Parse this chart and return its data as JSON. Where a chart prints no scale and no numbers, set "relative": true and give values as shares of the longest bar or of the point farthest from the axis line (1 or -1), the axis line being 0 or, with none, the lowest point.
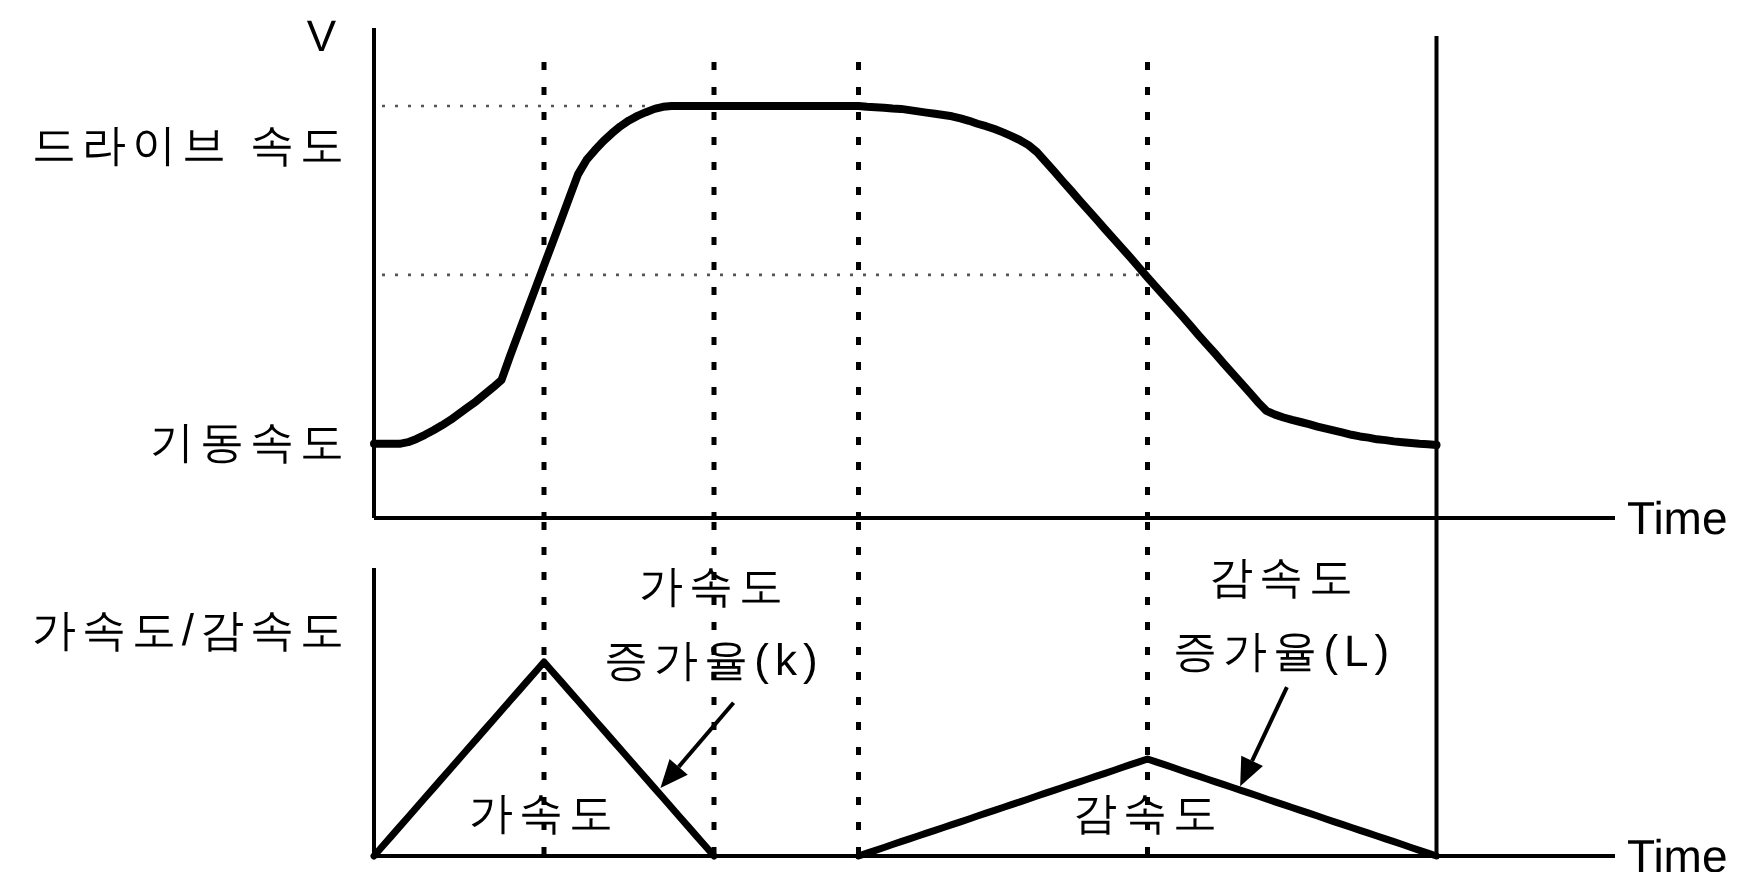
{
  "chart_data": [
    {
      "type": "line",
      "ylabel": "V",
      "xlabel": "Time",
      "relative": true,
      "categories": [
        null,
        null,
        null,
        null,
        null,
        null,
        null,
        null,
        null,
        null,
        null,
        null,
        null,
        null,
        null,
        null,
        null,
        null,
        null,
        null,
        null,
        null,
        null,
        null,
        null,
        null,
        null,
        null,
        null,
        null,
        null,
        null,
        null,
        null,
        null,
        null,
        null,
        null,
        null,
        null,
        null,
        null,
        null,
        null,
        null,
        null,
        null,
        null,
        null,
        null,
        null,
        null,
        null,
        null,
        null,
        null,
        null,
        null,
        null,
        null,
        null,
        null,
        null,
        null,
        null,
        null,
        null,
        null,
        null,
        null,
        null,
        null,
        null,
        null,
        null,
        null,
        null,
        null,
        null,
        null,
        null,
        null,
        null,
        null,
        null,
        null,
        null,
        null,
        null,
        null,
        null,
        null,
        null,
        null,
        null,
        null,
        null,
        null,
        null,
        null,
        null,
        null,
        null,
        null,
        null,
        null,
        null,
        null,
        null,
        null,
        null,
        null,
        null,
        null,
        null,
        null,
        null,
        null,
        null,
        null,
        null,
        null,
        null,
        null,
        null,
        null,
        null,
        null,
        null,
        null,
        null,
        null,
        null,
        null,
        null,
        null,
        null,
        null,
        null,
        null,
        null,
        null,
        null,
        null,
        null,
        null,
        null
      ],
      "color": "#000000",
      "values": [
        0.18,
        0.18,
        0.18,
        0.18,
        0.184,
        0.192,
        0.202,
        0.213,
        0.225,
        0.238,
        0.253,
        0.268,
        0.283,
        0.3,
        0.317,
        0.335,
        0.393,
        0.448,
        0.503,
        0.558,
        0.613,
        0.668,
        0.723,
        0.779,
        0.834,
        0.869,
        0.893,
        0.915,
        0.934,
        0.951,
        0.965,
        0.976,
        0.985,
        0.993,
        0.998,
        1,
        1,
        1,
        1,
        1,
        1,
        1,
        1,
        1,
        1,
        1,
        1,
        1,
        1,
        1,
        1,
        1,
        1,
        1,
        1,
        1,
        1,
        1,
        0.998,
        0.997,
        0.996,
        0.994,
        0.993,
        0.99,
        0.987,
        0.984,
        0.981,
        0.978,
        0.975,
        0.97,
        0.964,
        0.957,
        0.951,
        0.944,
        0.936,
        0.927,
        0.917,
        0.905,
        0.888,
        0.865,
        0.842,
        0.818,
        0.795,
        0.771,
        0.748,
        0.725,
        0.701,
        0.678,
        0.655,
        0.632,
        0.608,
        0.584,
        0.561,
        0.538,
        0.515,
        0.492,
        0.468,
        0.444,
        0.421,
        0.398,
        0.374,
        0.351,
        0.328,
        0.305,
        0.281,
        0.26,
        0.251,
        0.244,
        0.238,
        0.233,
        0.228,
        0.222,
        0.217,
        0.212,
        0.207,
        0.202,
        0.198,
        0.195,
        0.191,
        0.189,
        0.186,
        0.184,
        0.182,
        0.18,
        0.179,
        0.177,
        null,
        null,
        null,
        null,
        null,
        null,
        null,
        null,
        null,
        null,
        null,
        null,
        null,
        null,
        null,
        null,
        null,
        null,
        null,
        null,
        null
      ],
      "ref_lines": [
        {
          "axis": "y",
          "value": 1,
          "line_style": "dotted",
          "color": "#555555"
        },
        {
          "axis": "y",
          "value": 0.59,
          "line_style": "dotted",
          "color": "#555555"
        }
      ],
      "annotations": [
        "드라이브 속도",
        "기동속도"
      ]
    },
    {
      "type": "line",
      "ylabel": "가속도/감속도",
      "xlabel": "Time",
      "relative": true,
      "categories": [
        null,
        null,
        null,
        null,
        null,
        null,
        null,
        null,
        null,
        null,
        null,
        null,
        null,
        null,
        null,
        null,
        null,
        null,
        null,
        null,
        null,
        null,
        null,
        null,
        null,
        null,
        null,
        null,
        null,
        null,
        null,
        null,
        null,
        null,
        null,
        null,
        null,
        null,
        null,
        null,
        null,
        null,
        null,
        null,
        null,
        null,
        null,
        null,
        null,
        null,
        null,
        null,
        null,
        null,
        null,
        null,
        null,
        null,
        null,
        null,
        null,
        null,
        null,
        null,
        null,
        null,
        null,
        null,
        null,
        null,
        null,
        null,
        null,
        null,
        null,
        null,
        null,
        null,
        null,
        null,
        null,
        null,
        null,
        null,
        null,
        null,
        null,
        null,
        null,
        null,
        null,
        null,
        null,
        null,
        null,
        null,
        null,
        null,
        null,
        null,
        null,
        null,
        null,
        null,
        null,
        null,
        null,
        null,
        null,
        null,
        null,
        null,
        null,
        null,
        null,
        null,
        null,
        null,
        null,
        null,
        null,
        null,
        null,
        null,
        null,
        null,
        null,
        null,
        null,
        null,
        null,
        null,
        null,
        null,
        null,
        null,
        null,
        null,
        null,
        null,
        null,
        null,
        null,
        null,
        null,
        null,
        null
      ],
      "color": "#000000",
      "values": [
        0,
        0.05,
        0.1,
        0.15,
        0.2,
        0.25,
        0.3,
        0.35,
        0.4,
        0.45,
        0.5,
        0.55,
        0.6,
        0.65,
        0.7,
        0.75,
        0.8,
        0.85,
        0.9,
        0.95,
        1,
        0.95,
        0.9,
        0.85,
        0.8,
        0.75,
        0.7,
        0.65,
        0.6,
        0.55,
        0.5,
        0.45,
        0.4,
        0.35,
        0.3,
        0.25,
        0.2,
        0.15,
        0.1,
        0.05,
        0,
        null,
        null,
        null,
        null,
        null,
        null,
        null,
        null,
        null,
        null,
        null,
        null,
        null,
        null,
        null,
        null,
        0,
        0.015,
        0.029,
        0.044,
        0.059,
        0.074,
        0.088,
        0.103,
        0.118,
        0.132,
        0.147,
        0.162,
        0.176,
        0.191,
        0.206,
        0.221,
        0.235,
        0.25,
        0.265,
        0.279,
        0.294,
        0.309,
        0.324,
        0.338,
        0.353,
        0.368,
        0.382,
        0.397,
        0.412,
        0.426,
        0.441,
        0.456,
        0.471,
        0.485,
        0.5,
        0.485,
        0.471,
        0.456,
        0.441,
        0.426,
        0.412,
        0.397,
        0.382,
        0.368,
        0.353,
        0.338,
        0.324,
        0.309,
        0.294,
        0.279,
        0.265,
        0.25,
        0.235,
        0.221,
        0.206,
        0.191,
        0.176,
        0.162,
        0.147,
        0.132,
        0.118,
        0.103,
        0.088,
        0.074,
        0.059,
        0.044,
        0.029,
        0.015,
        0,
        null,
        null,
        null,
        null,
        null,
        null,
        null,
        null,
        null,
        null,
        null,
        null,
        null,
        null,
        null,
        null,
        null,
        null,
        null,
        null,
        null
      ],
      "annotations": [
        "가속도",
        "감속도",
        "가속도\n증가율(k)",
        "감속도\n증가율(L)"
      ]
    }
  ]
}
